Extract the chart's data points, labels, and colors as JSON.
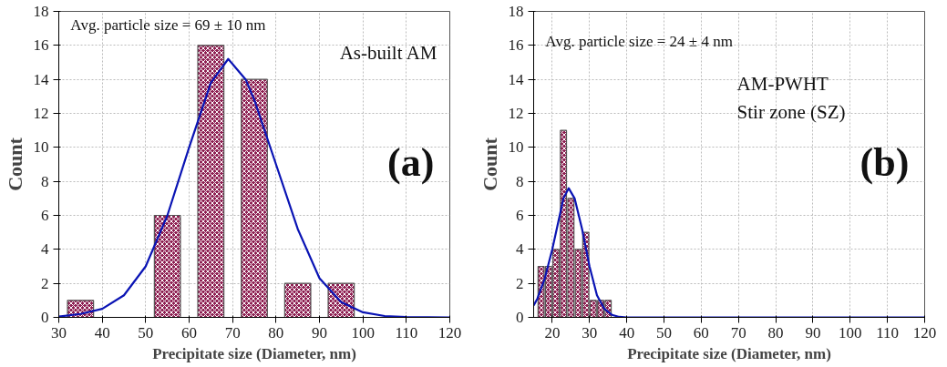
{
  "chart_data": [
    {
      "type": "bar",
      "xlabel": "Precipitate size (Diameter, nm)",
      "ylabel": "Count",
      "x": [
        35,
        55,
        65,
        75,
        85,
        95
      ],
      "values": [
        1,
        6,
        16,
        14,
        2,
        2
      ],
      "color": "#8e1f52",
      "series": [
        {
          "type": "line",
          "color": "#0a14b4",
          "x": [
            30,
            35,
            40,
            45,
            50,
            55,
            60,
            65,
            69,
            73,
            75,
            80,
            85,
            90,
            95,
            100,
            105,
            110,
            120
          ],
          "values": [
            0.05,
            0.2,
            0.5,
            1.3,
            3.0,
            6.0,
            10.0,
            13.8,
            15.2,
            14.0,
            12.8,
            9.0,
            5.2,
            2.3,
            0.9,
            0.3,
            0.08,
            0.02,
            0
          ]
        }
      ],
      "xlim": [
        30,
        120
      ],
      "xticks": [
        30,
        40,
        50,
        60,
        70,
        80,
        90,
        100,
        110,
        120
      ],
      "ylim": [
        0,
        18
      ],
      "yticks": [
        0,
        2,
        4,
        6,
        8,
        10,
        12,
        14,
        16,
        18
      ],
      "grid": true,
      "line_style": "solid",
      "annotations": [
        "Avg. particle size = 69 ± 10 nm",
        "As-built AM",
        "(a)"
      ]
    },
    {
      "type": "bar",
      "xlabel": "Precipitate size (Diameter, nm)",
      "ylabel": "Count",
      "x": [
        17,
        19,
        21,
        23,
        25,
        27,
        29,
        31,
        33,
        35
      ],
      "values": [
        3,
        3,
        4,
        11,
        7,
        4,
        5,
        1,
        1,
        1
      ],
      "color": "#8e1f52",
      "series": [
        {
          "type": "line",
          "color": "#0a14b4",
          "x": [
            15,
            16,
            18,
            20,
            22,
            23,
            24.4,
            26,
            28,
            30,
            32,
            34,
            36,
            38,
            40,
            60,
            120
          ],
          "values": [
            0.7,
            1.1,
            2.3,
            4.0,
            6.0,
            7.0,
            7.6,
            7.0,
            5.2,
            3.0,
            1.3,
            0.5,
            0.15,
            0.03,
            0,
            0,
            0
          ]
        }
      ],
      "xlim": [
        15,
        120
      ],
      "xticks": [
        20,
        30,
        40,
        50,
        60,
        70,
        80,
        90,
        100,
        110,
        120
      ],
      "ylim": [
        0,
        18
      ],
      "yticks": [
        0,
        2,
        4,
        6,
        8,
        10,
        12,
        14,
        16,
        18
      ],
      "grid": true,
      "line_style": "solid",
      "annotations": [
        "Avg. particle size = 24 ± 4 nm",
        "AM-PWHT\nStir zone (SZ)",
        "(b)"
      ]
    }
  ]
}
